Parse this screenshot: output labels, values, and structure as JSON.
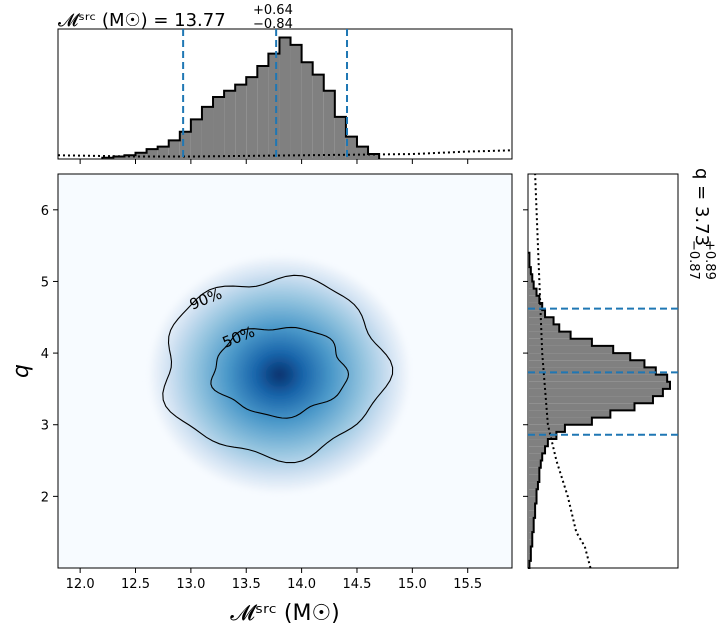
{
  "chart_data": {
    "type": "heatmap",
    "corner": {
      "xlabel": "𝓜ˢʳᶜ (M☉)",
      "ylabel": "q",
      "xlim": [
        11.8,
        15.9
      ],
      "ylim": [
        1.0,
        6.5
      ],
      "xticks": [
        "12.0",
        "12.5",
        "13.0",
        "13.5",
        "14.0",
        "14.5",
        "15.0",
        "15.5"
      ],
      "yticks": [
        "2",
        "3",
        "4",
        "5",
        "6"
      ],
      "density_peak": {
        "x": 13.8,
        "y": 3.7
      },
      "contours": [
        {
          "label": "50%",
          "center": [
            13.8,
            3.75
          ],
          "half_width": 0.6,
          "half_height": 0.62
        },
        {
          "label": "90%",
          "center": [
            13.75,
            3.8
          ],
          "half_width": 1.0,
          "half_height": 1.25
        }
      ],
      "colormap": "Blues"
    },
    "top_histogram": {
      "title": "𝓜ˢʳᶜ (M☉) = 13.77",
      "title_sup": "+0.64",
      "title_sub": "−0.84",
      "median": 13.77,
      "lower": 12.93,
      "upper": 14.41,
      "bin_edges": [
        12.2,
        12.3,
        12.4,
        12.5,
        12.6,
        12.7,
        12.8,
        12.9,
        13.0,
        13.1,
        13.2,
        13.3,
        13.4,
        13.5,
        13.6,
        13.7,
        13.8,
        13.9,
        14.0,
        14.1,
        14.2,
        14.3,
        14.4,
        14.5,
        14.6,
        14.7
      ],
      "counts": [
        0.01,
        0.02,
        0.03,
        0.05,
        0.08,
        0.1,
        0.15,
        0.22,
        0.32,
        0.42,
        0.5,
        0.55,
        0.6,
        0.66,
        0.75,
        0.85,
        0.98,
        0.92,
        0.78,
        0.68,
        0.55,
        0.34,
        0.18,
        0.1,
        0.04
      ],
      "prior_x": [
        11.8,
        12.5,
        13.0,
        14.0,
        15.0,
        15.5,
        15.9
      ],
      "prior_y": [
        0.03,
        0.02,
        0.02,
        0.03,
        0.04,
        0.06,
        0.07
      ]
    },
    "right_histogram": {
      "title": "q = 3.73",
      "title_sup": "+0.89",
      "title_sub": "−0.87",
      "median": 3.73,
      "lower": 2.86,
      "upper": 4.62,
      "bin_edges": [
        1.0,
        1.1,
        1.2,
        1.3,
        1.4,
        1.5,
        1.6,
        1.7,
        1.8,
        1.9,
        2.0,
        2.1,
        2.2,
        2.3,
        2.4,
        2.5,
        2.6,
        2.7,
        2.8,
        2.9,
        3.0,
        3.1,
        3.2,
        3.3,
        3.4,
        3.5,
        3.6,
        3.7,
        3.8,
        3.9,
        4.0,
        4.1,
        4.2,
        4.3,
        4.4,
        4.5,
        4.6,
        4.7,
        4.8,
        4.9,
        5.0,
        5.1,
        5.2,
        5.3,
        5.4
      ],
      "counts": [
        0.01,
        0.02,
        0.02,
        0.03,
        0.03,
        0.04,
        0.04,
        0.05,
        0.05,
        0.06,
        0.06,
        0.07,
        0.08,
        0.08,
        0.09,
        0.1,
        0.12,
        0.14,
        0.2,
        0.26,
        0.45,
        0.58,
        0.75,
        0.88,
        0.95,
        1.0,
        0.98,
        0.9,
        0.82,
        0.72,
        0.6,
        0.45,
        0.3,
        0.22,
        0.18,
        0.12,
        0.1,
        0.08,
        0.06,
        0.04,
        0.03,
        0.02,
        0.01,
        0.01
      ],
      "prior_y": [
        1.0,
        1.3,
        1.5,
        2.0,
        2.5,
        3.0,
        4.0,
        5.0,
        6.0,
        6.5
      ],
      "prior_x": [
        0.44,
        0.4,
        0.34,
        0.28,
        0.2,
        0.14,
        0.1,
        0.08,
        0.06,
        0.05
      ]
    },
    "accent_color": "#1f77b4",
    "hist_fill": "#808080"
  }
}
